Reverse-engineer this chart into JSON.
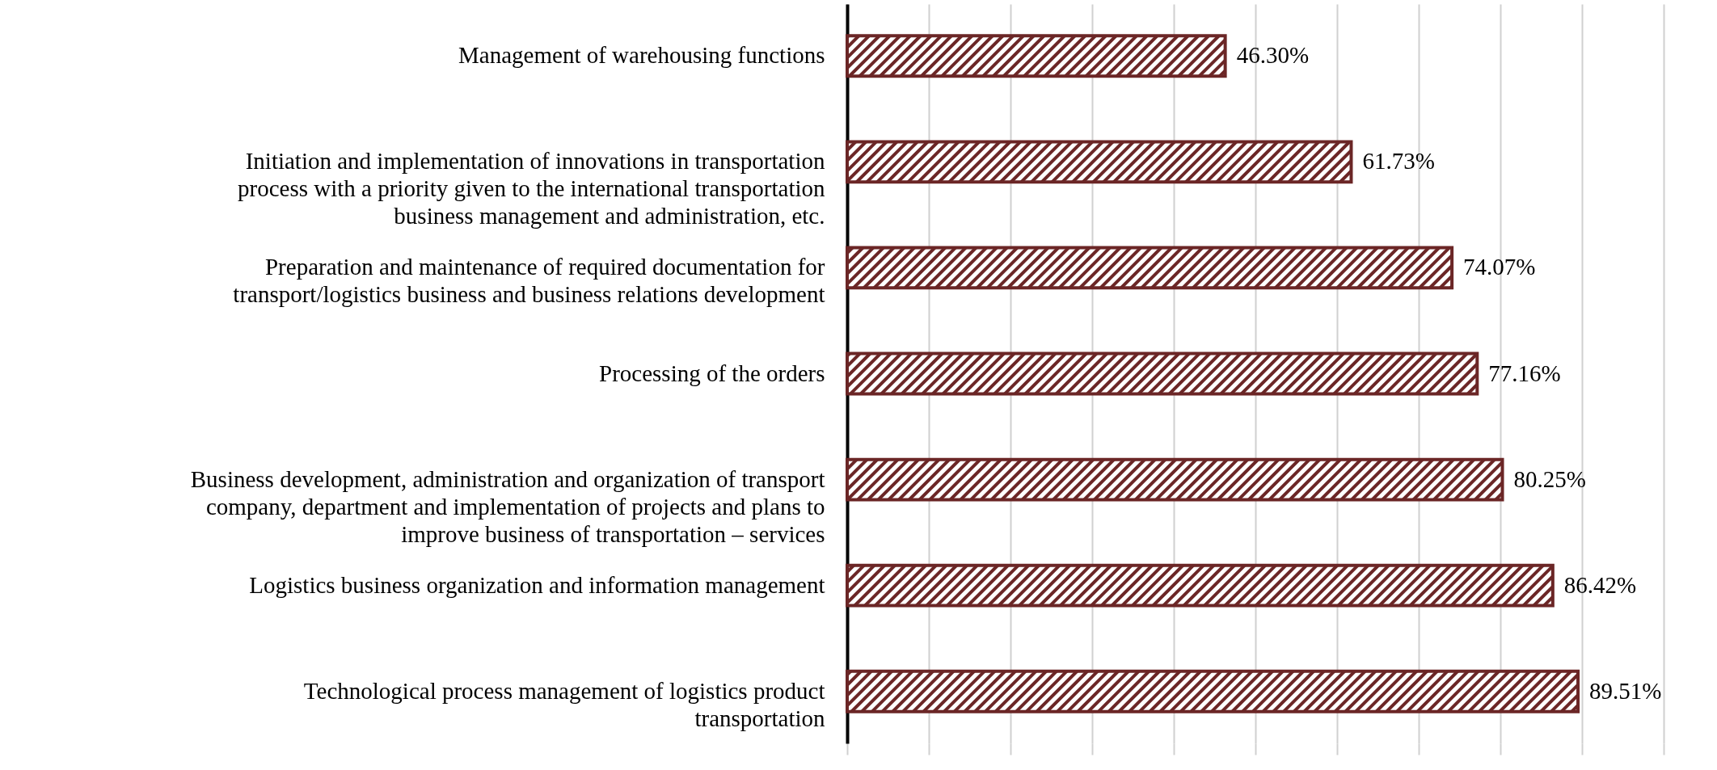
{
  "chart_data": {
    "type": "bar",
    "orientation": "horizontal",
    "categories": [
      "Management of warehousing functions",
      "Initiation and implementation of innovations in transportation process with a priority given to the international transportation business management and administration, etc.",
      "Preparation and maintenance of required documentation for transport/logistics business and business relations development",
      "Processing of the orders",
      "Business development, administration and organization of transport company, department  and implementation of projects and plans to improve business of transportation – services",
      "Logistics business organization and information management",
      "Technological process management of logistics product transportation"
    ],
    "values": [
      46.3,
      61.73,
      74.07,
      77.16,
      80.25,
      86.42,
      89.51
    ],
    "value_labels": [
      "46.30%",
      "61.73%",
      "74.07%",
      "77.16%",
      "80.25%",
      "86.42%",
      "89.51%"
    ],
    "color": "#6b2626",
    "xlim": [
      0,
      100
    ],
    "xticks": [
      {
        "value": 0,
        "label": null
      },
      {
        "value": 10,
        "label": null
      },
      {
        "value": 20,
        "label": null
      },
      {
        "value": 30,
        "label": null
      },
      {
        "value": 40,
        "label": null
      },
      {
        "value": 50,
        "label": null
      },
      {
        "value": 60,
        "label": null
      },
      {
        "value": 70,
        "label": null
      },
      {
        "value": 80,
        "label": null
      },
      {
        "value": 90,
        "label": null
      },
      {
        "value": 100,
        "label": null
      }
    ],
    "tick_labels": "y",
    "grid": "x"
  }
}
